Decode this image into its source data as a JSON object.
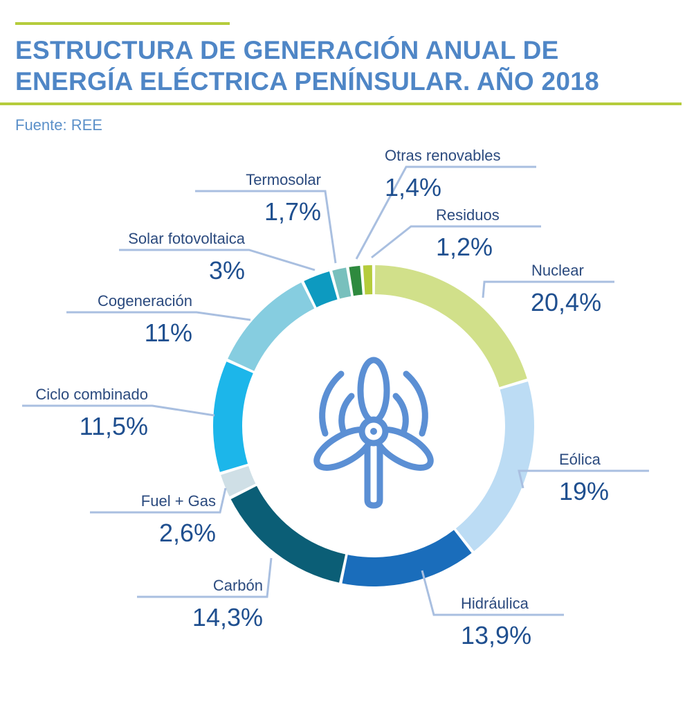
{
  "title_line1": "ESTRUCTURA DE GENERACIÓN ANUAL DE",
  "title_line2": "ENERGÍA ELÉCTRICA PENÍNSULAR. AÑO 2018",
  "source": "Fuente: REE",
  "colors": {
    "accent_rule": "#b5cc3c",
    "title": "#4f86c6"
  },
  "icon": "wind-turbine-icon",
  "chart_data": {
    "type": "pie",
    "variant": "donut",
    "title": "ESTRUCTURA DE GENERACIÓN ANUAL DE ENERGÍA ELÉCTRICA PENÍNSULAR. AÑO 2018",
    "unit": "%",
    "slices": [
      {
        "name": "Nuclear",
        "value": 20.4,
        "label": "20,4%",
        "color": "#d1e08a"
      },
      {
        "name": "Eólica",
        "value": 19,
        "label": "19%",
        "color": "#bcdcf4"
      },
      {
        "name": "Hidráulica",
        "value": 13.9,
        "label": "13,9%",
        "color": "#1a6dbb"
      },
      {
        "name": "Carbón",
        "value": 14.3,
        "label": "14,3%",
        "color": "#0b5e76"
      },
      {
        "name": "Fuel + Gas",
        "value": 2.6,
        "label": "2,6%",
        "color": "#cfdfe6"
      },
      {
        "name": "Ciclo combinado",
        "value": 11.5,
        "label": "11,5%",
        "color": "#1cb6ea"
      },
      {
        "name": "Cogeneración",
        "value": 11,
        "label": "11%",
        "color": "#86cde0"
      },
      {
        "name": "Solar fotovoltaica",
        "value": 3,
        "label": "3%",
        "color": "#0d9ac0"
      },
      {
        "name": "Termosolar",
        "value": 1.7,
        "label": "1,7%",
        "color": "#78c0bd"
      },
      {
        "name": "Otras renovables",
        "value": 1.4,
        "label": "1,4%",
        "color": "#2e8a3e"
      },
      {
        "name": "Residuos",
        "value": 1.2,
        "label": "1,2%",
        "color": "#b5cc3c"
      }
    ]
  }
}
